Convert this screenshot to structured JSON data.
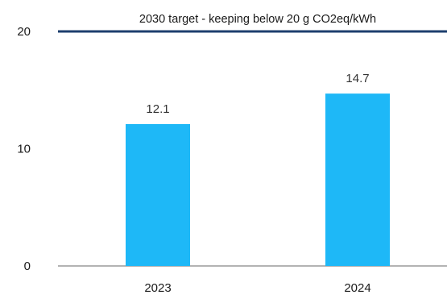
{
  "chart_data": {
    "type": "bar",
    "categories": [
      "2023",
      "2024"
    ],
    "values": [
      12.1,
      14.7
    ],
    "value_labels": [
      "12.1",
      "14.7"
    ],
    "ylim": [
      0,
      20
    ],
    "yticks": [
      0,
      10,
      20
    ],
    "title": "",
    "xlabel": "",
    "ylabel": "",
    "grid": false,
    "bar_color": "#1eb8f7",
    "reference_line": {
      "value": 20,
      "label": "2030 target - keeping below 20 g CO2eq/kWh",
      "color": "#1d3f6e"
    }
  }
}
